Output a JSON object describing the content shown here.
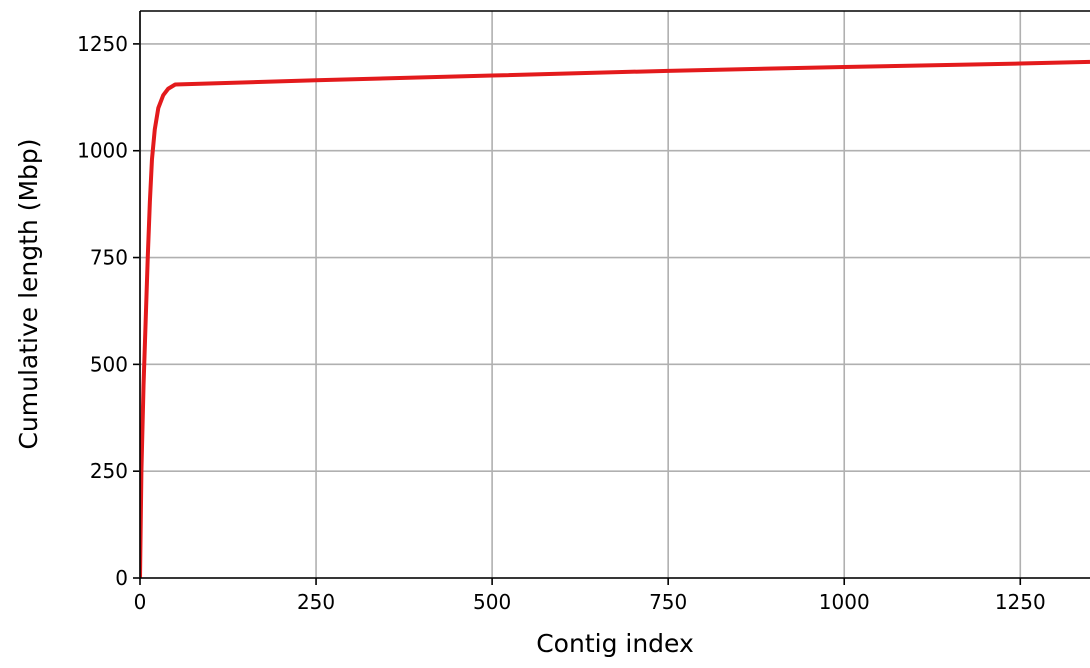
{
  "chart_data": {
    "type": "line",
    "x_label": "Contig index",
    "y_label": "Cumulative length (Mbp)",
    "x": [
      0,
      2,
      5,
      8,
      11,
      14,
      17,
      21,
      26,
      33,
      40,
      50,
      250,
      500,
      750,
      1000,
      1250,
      1349
    ],
    "series": [
      {
        "name": "Cumulative length",
        "color": "#e31a1c",
        "values": [
          0,
          250,
          450,
          600,
          750,
          880,
          980,
          1050,
          1100,
          1130,
          1145,
          1155,
          1165,
          1176,
          1187,
          1196,
          1204,
          1208
        ]
      }
    ],
    "xlim": [
      0,
      1349
    ],
    "ylim": [
      0,
      1327
    ],
    "xticks": [
      0,
      250,
      500,
      750,
      1000,
      1250
    ],
    "yticks": [
      0,
      250,
      500,
      750,
      1000,
      1250
    ],
    "grid": true
  }
}
